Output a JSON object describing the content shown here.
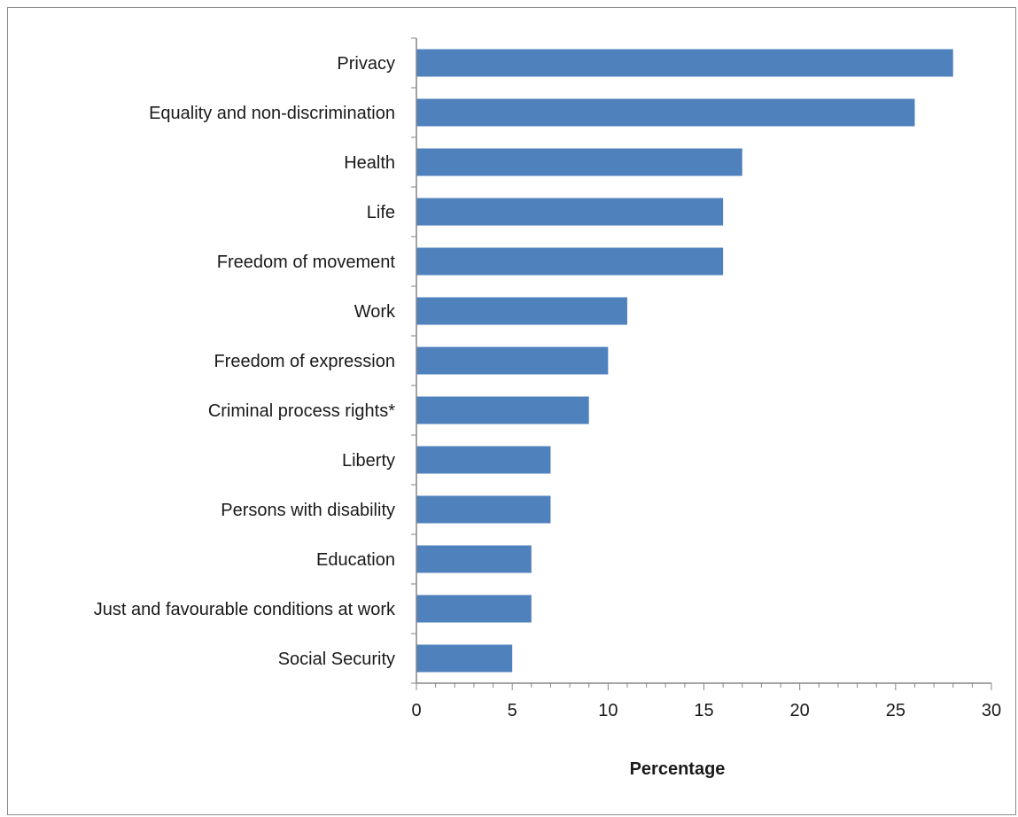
{
  "chart_data": {
    "type": "bar",
    "orientation": "horizontal",
    "categories": [
      "Privacy",
      "Equality and non-discrimination",
      "Health",
      "Life",
      "Freedom of movement",
      "Work",
      "Freedom of expression",
      "Criminal process rights*",
      "Liberty",
      "Persons with disability",
      "Education",
      "Just and favourable conditions at work",
      "Social Security"
    ],
    "values": [
      28,
      26,
      17,
      16,
      16,
      11,
      10,
      9,
      7,
      7,
      6,
      6,
      5
    ],
    "xlabel": "Percentage",
    "xlim": [
      0,
      30
    ],
    "xticks": [
      0,
      5,
      10,
      15,
      20,
      25,
      30
    ],
    "grid": false,
    "bar_color": "#4f81bd"
  }
}
